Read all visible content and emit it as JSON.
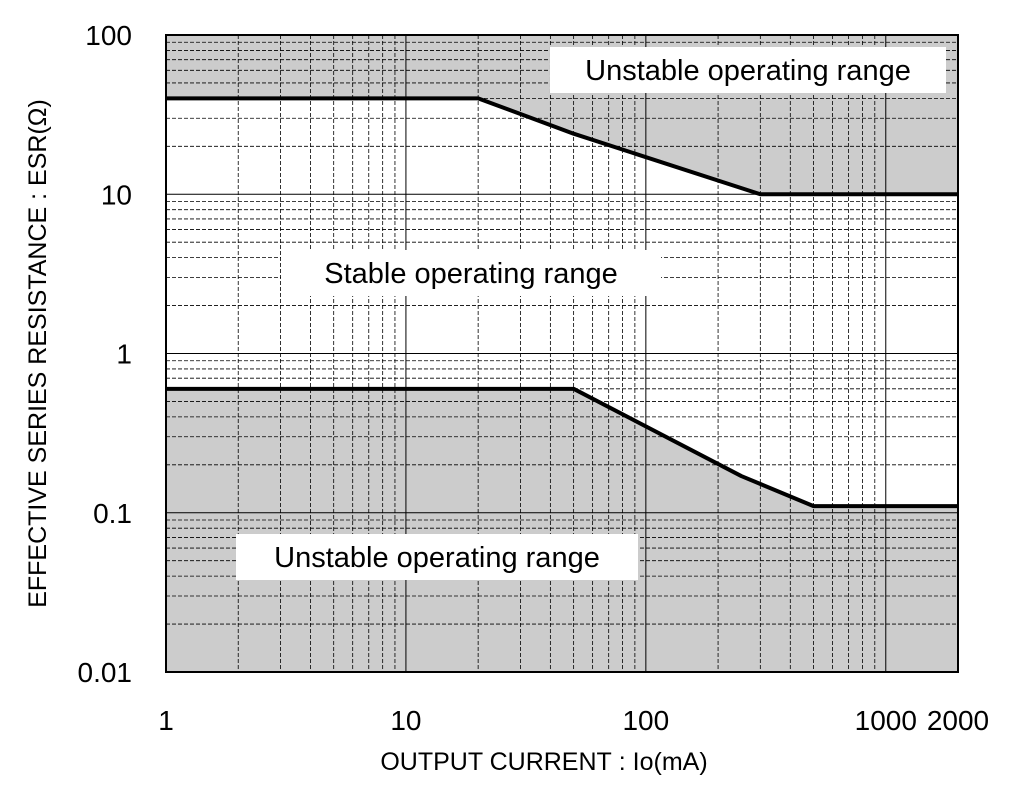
{
  "chart_data": {
    "type": "line",
    "title": "",
    "xlabel": "OUTPUT CURRENT : Io(mA)",
    "ylabel": "EFFECTIVE SERIES RESISTANCE : ESR(Ω)",
    "x_scale": "log",
    "y_scale": "log",
    "xlim": [
      1,
      2000
    ],
    "ylim": [
      0.01,
      100
    ],
    "grid": true,
    "x_ticks": [
      {
        "value": 1,
        "label": "1"
      },
      {
        "value": 10,
        "label": "10"
      },
      {
        "value": 100,
        "label": "100"
      },
      {
        "value": 1000,
        "label": "1000"
      },
      {
        "value": 2000,
        "label": "2000"
      }
    ],
    "y_ticks": [
      {
        "value": 100,
        "label": "100"
      },
      {
        "value": 10,
        "label": "10"
      },
      {
        "value": 1,
        "label": "1"
      },
      {
        "value": 0.1,
        "label": "0.1"
      },
      {
        "value": 0.01,
        "label": "0.01"
      }
    ],
    "series": [
      {
        "x": [
          1,
          20,
          50,
          300,
          2000
        ],
        "y": [
          40,
          40,
          24,
          10,
          10
        ]
      },
      {
        "x": [
          1,
          50,
          250,
          500,
          2000
        ],
        "y": [
          0.6,
          0.6,
          0.17,
          0.11,
          0.11
        ]
      }
    ],
    "regions": [
      {
        "label": "Unstable operating range",
        "shade": "#cccccc",
        "bound": "above upper curve"
      },
      {
        "label": "Stable operating range",
        "shade": "#ffffff",
        "bound": "between curves"
      },
      {
        "label": "Unstable operating range",
        "shade": "#cccccc",
        "bound": "below lower curve"
      }
    ],
    "colors": {
      "unstable_fill": "#cccccc",
      "stable_fill": "#ffffff",
      "curve": "#000000",
      "grid": "#000000"
    }
  }
}
